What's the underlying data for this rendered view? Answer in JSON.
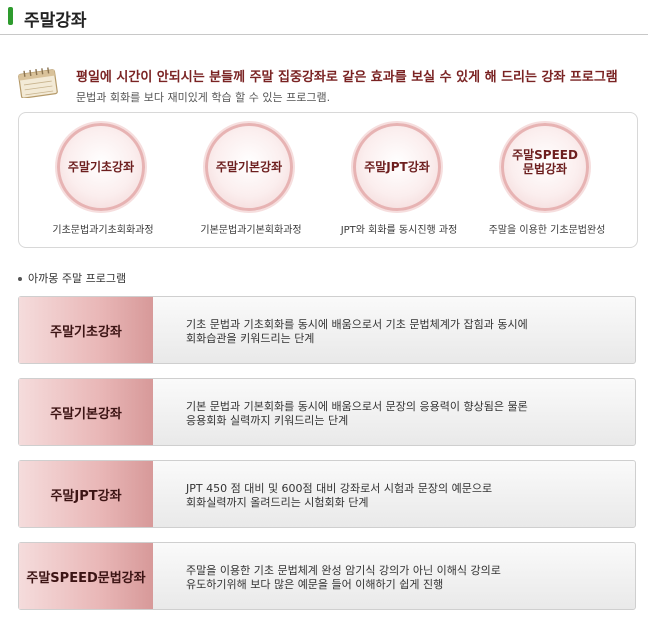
{
  "header": {
    "title": "주말강좌"
  },
  "intro": {
    "icon": "calendar-icon",
    "headline": "평일에 시간이 안되시는 분들께  주말 집중강좌로 같은 효과를 보실 수 있게 해 드리는 강좌 프로그램",
    "subline": "문법과 회화를 보다 재미있게 학습 할 수 있는 프로그램."
  },
  "courses": [
    {
      "label": "주말기초강좌",
      "caption": "기초문법과기초회화과정"
    },
    {
      "label": "주말기본강좌",
      "caption": "기본문법과기본회화과정"
    },
    {
      "label": "주말JPT강좌",
      "caption": "JPT와 회화를 동시진행 과정"
    },
    {
      "label1": "주말SPEED",
      "label2": "문법강좌",
      "caption": "주말을 이용한 기초문법완성"
    }
  ],
  "section": {
    "title": "아까몽 주말 프로그램"
  },
  "programs": [
    {
      "label": "주말기초강좌",
      "line1": "기초 문법과 기초회화를 동시에 배움으로서  기초 문법체계가 잡힘과 동시에",
      "line2": "회화습관을 키워드리는 단계"
    },
    {
      "label": "주말기본강좌",
      "line1": "기본 문법과 기본회화를 동시에 배움으로서  문장의 응용력이 향상됨은 물론",
      "line2": "응용회화 실력까지 키워드리는 단계"
    },
    {
      "label": "주말JPT강좌",
      "line1": "JPT 450 점 대비 및 600점 대비 강좌로서  시험과 문장의 예문으로",
      "line2": "회화실력까지 올려드리는 시험회화 단계"
    },
    {
      "label": "주말SPEED문법강좌",
      "line1": "주말을 이용한 기초 문법체계 완성  암기식 강의가 아닌 이해식 강의로",
      "line2": "유도하기위해 보다 많은 예문을 들어  이해하기 쉽게 진행"
    }
  ],
  "colors": {
    "accent_green": "#2e9b2e",
    "headline_red": "#7a2323",
    "label_pink": "#e9b7b7"
  }
}
